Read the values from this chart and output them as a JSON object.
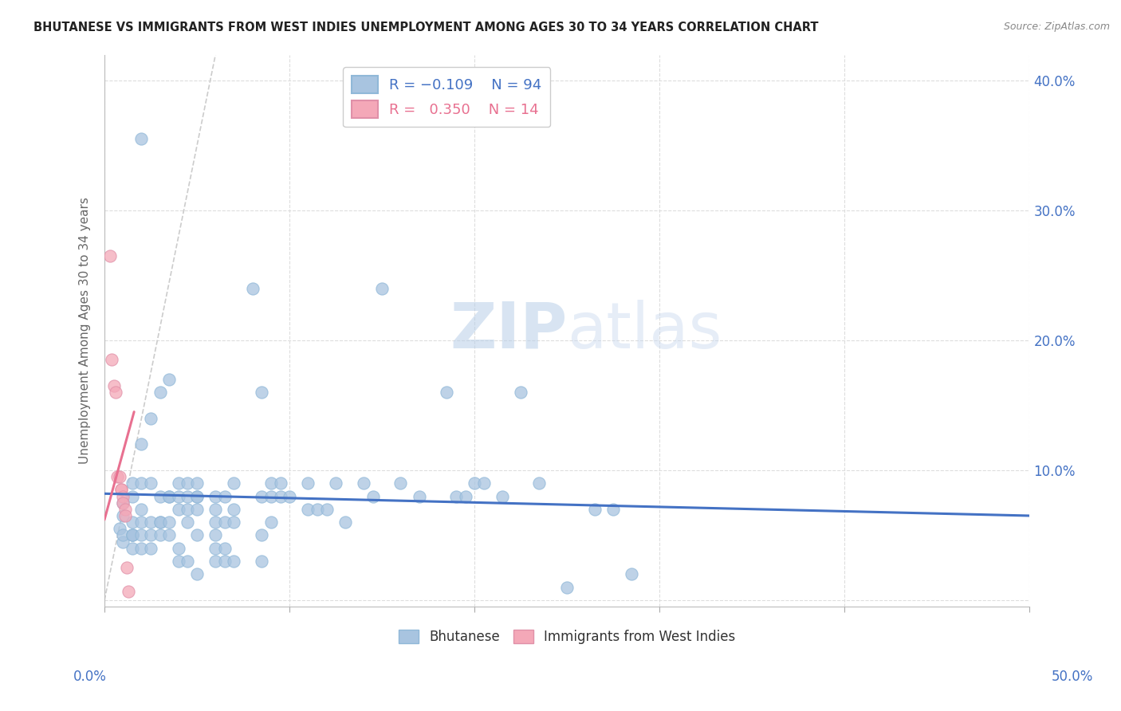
{
  "title": "BHUTANESE VS IMMIGRANTS FROM WEST INDIES UNEMPLOYMENT AMONG AGES 30 TO 34 YEARS CORRELATION CHART",
  "source": "Source: ZipAtlas.com",
  "ylabel": "Unemployment Among Ages 30 to 34 years",
  "xlim": [
    0,
    0.5
  ],
  "ylim": [
    -0.005,
    0.42
  ],
  "yticks": [
    0.0,
    0.1,
    0.2,
    0.3,
    0.4
  ],
  "yticklabels": [
    "",
    "10.0%",
    "20.0%",
    "30.0%",
    "40.0%"
  ],
  "blue_color": "#a8c4e0",
  "pink_color": "#f4a8b8",
  "trend_blue_color": "#4472c4",
  "trend_pink_color": "#e87090",
  "diag_color": "#cccccc",
  "watermark_zip": "ZIP",
  "watermark_atlas": "atlas",
  "bg_color": "#ffffff",
  "grid_color": "#dddddd",
  "blue_scatter": [
    [
      0.008,
      0.055
    ],
    [
      0.01,
      0.065
    ],
    [
      0.01,
      0.075
    ],
    [
      0.01,
      0.045
    ],
    [
      0.01,
      0.05
    ],
    [
      0.015,
      0.05
    ],
    [
      0.015,
      0.08
    ],
    [
      0.015,
      0.09
    ],
    [
      0.015,
      0.06
    ],
    [
      0.015,
      0.05
    ],
    [
      0.015,
      0.04
    ],
    [
      0.015,
      0.05
    ],
    [
      0.02,
      0.355
    ],
    [
      0.02,
      0.12
    ],
    [
      0.02,
      0.09
    ],
    [
      0.02,
      0.06
    ],
    [
      0.02,
      0.07
    ],
    [
      0.02,
      0.05
    ],
    [
      0.02,
      0.04
    ],
    [
      0.025,
      0.09
    ],
    [
      0.025,
      0.14
    ],
    [
      0.025,
      0.06
    ],
    [
      0.025,
      0.05
    ],
    [
      0.025,
      0.04
    ],
    [
      0.03,
      0.16
    ],
    [
      0.03,
      0.08
    ],
    [
      0.03,
      0.06
    ],
    [
      0.03,
      0.06
    ],
    [
      0.03,
      0.05
    ],
    [
      0.035,
      0.17
    ],
    [
      0.035,
      0.08
    ],
    [
      0.035,
      0.08
    ],
    [
      0.035,
      0.06
    ],
    [
      0.035,
      0.05
    ],
    [
      0.04,
      0.09
    ],
    [
      0.04,
      0.08
    ],
    [
      0.04,
      0.07
    ],
    [
      0.04,
      0.04
    ],
    [
      0.04,
      0.03
    ],
    [
      0.045,
      0.09
    ],
    [
      0.045,
      0.08
    ],
    [
      0.045,
      0.07
    ],
    [
      0.045,
      0.06
    ],
    [
      0.045,
      0.03
    ],
    [
      0.05,
      0.09
    ],
    [
      0.05,
      0.08
    ],
    [
      0.05,
      0.08
    ],
    [
      0.05,
      0.07
    ],
    [
      0.05,
      0.05
    ],
    [
      0.05,
      0.02
    ],
    [
      0.06,
      0.08
    ],
    [
      0.06,
      0.07
    ],
    [
      0.06,
      0.06
    ],
    [
      0.06,
      0.05
    ],
    [
      0.06,
      0.04
    ],
    [
      0.06,
      0.03
    ],
    [
      0.065,
      0.08
    ],
    [
      0.065,
      0.06
    ],
    [
      0.065,
      0.04
    ],
    [
      0.065,
      0.03
    ],
    [
      0.07,
      0.09
    ],
    [
      0.07,
      0.07
    ],
    [
      0.07,
      0.06
    ],
    [
      0.07,
      0.03
    ],
    [
      0.08,
      0.24
    ],
    [
      0.085,
      0.16
    ],
    [
      0.085,
      0.08
    ],
    [
      0.085,
      0.05
    ],
    [
      0.085,
      0.03
    ],
    [
      0.09,
      0.09
    ],
    [
      0.09,
      0.08
    ],
    [
      0.09,
      0.06
    ],
    [
      0.095,
      0.09
    ],
    [
      0.095,
      0.08
    ],
    [
      0.1,
      0.08
    ],
    [
      0.11,
      0.09
    ],
    [
      0.11,
      0.07
    ],
    [
      0.115,
      0.07
    ],
    [
      0.12,
      0.07
    ],
    [
      0.125,
      0.09
    ],
    [
      0.13,
      0.06
    ],
    [
      0.14,
      0.09
    ],
    [
      0.145,
      0.08
    ],
    [
      0.15,
      0.24
    ],
    [
      0.16,
      0.09
    ],
    [
      0.17,
      0.08
    ],
    [
      0.185,
      0.16
    ],
    [
      0.19,
      0.08
    ],
    [
      0.195,
      0.08
    ],
    [
      0.2,
      0.09
    ],
    [
      0.205,
      0.09
    ],
    [
      0.215,
      0.08
    ],
    [
      0.225,
      0.16
    ],
    [
      0.235,
      0.09
    ],
    [
      0.25,
      0.01
    ],
    [
      0.265,
      0.07
    ],
    [
      0.275,
      0.07
    ],
    [
      0.285,
      0.02
    ]
  ],
  "pink_scatter": [
    [
      0.003,
      0.265
    ],
    [
      0.004,
      0.185
    ],
    [
      0.005,
      0.165
    ],
    [
      0.006,
      0.16
    ],
    [
      0.007,
      0.095
    ],
    [
      0.008,
      0.095
    ],
    [
      0.009,
      0.085
    ],
    [
      0.009,
      0.085
    ],
    [
      0.01,
      0.08
    ],
    [
      0.01,
      0.075
    ],
    [
      0.011,
      0.07
    ],
    [
      0.011,
      0.065
    ],
    [
      0.012,
      0.025
    ],
    [
      0.013,
      0.007
    ]
  ],
  "blue_trend_start_x": 0.0,
  "blue_trend_end_x": 0.5,
  "blue_trend_start_y": 0.082,
  "blue_trend_end_y": 0.065,
  "pink_trend_start_x": 0.0,
  "pink_trend_end_x": 0.016,
  "pink_trend_start_y": 0.062,
  "pink_trend_end_y": 0.145
}
